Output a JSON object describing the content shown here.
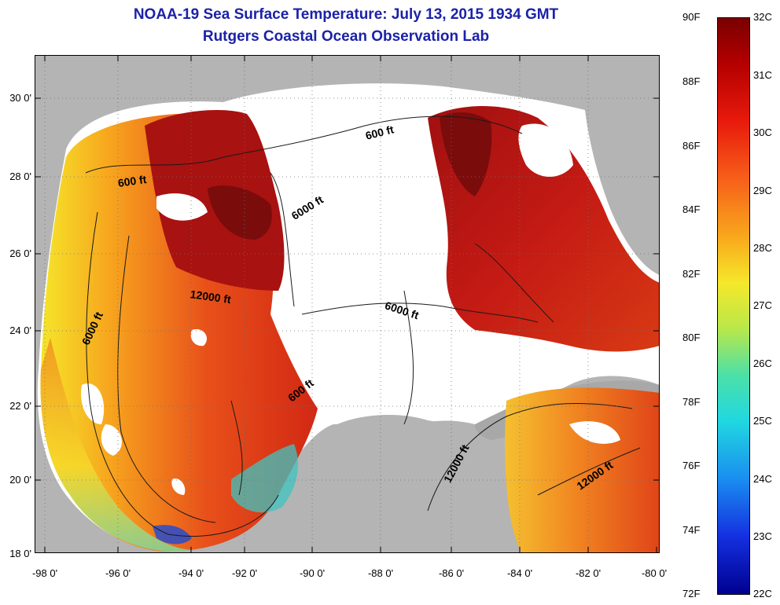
{
  "title": {
    "line1": "NOAA-19 Sea Surface Temperature:  July 13, 2015 1934 GMT",
    "line2": "Rutgers Coastal Ocean Observation Lab"
  },
  "map": {
    "lat_ticks": [
      "30 0'",
      "28 0'",
      "26 0'",
      "24 0'",
      "22 0'",
      "20 0'",
      "18 0'"
    ],
    "lon_ticks": [
      "-98 0'",
      "-96 0'",
      "-94 0'",
      "-92 0'",
      "-90 0'",
      "-88 0'",
      "-86 0'",
      "-84 0'",
      "-82 0'",
      "-80 0'"
    ],
    "contours": [
      "600 ft",
      "6000 ft",
      "12000 ft",
      "6000 ft",
      "6000 ft",
      "600 ft",
      "12000 ft",
      "12000 ft",
      "600 ft"
    ],
    "colors": {
      "land": "#b4b4b4",
      "cloud": "#ffffff",
      "warmest": "#8b0d0d",
      "coolest": "#0000a0"
    }
  },
  "colorbar": {
    "fahrenheit": [
      "90F",
      "88F",
      "86F",
      "84F",
      "82F",
      "80F",
      "78F",
      "76F",
      "74F",
      "72F"
    ],
    "celsius": [
      "32C",
      "31C",
      "30C",
      "29C",
      "28C",
      "27C",
      "26C",
      "25C",
      "24C",
      "23C",
      "22C"
    ],
    "range_f": [
      72,
      90
    ],
    "range_c": [
      22,
      32
    ]
  }
}
